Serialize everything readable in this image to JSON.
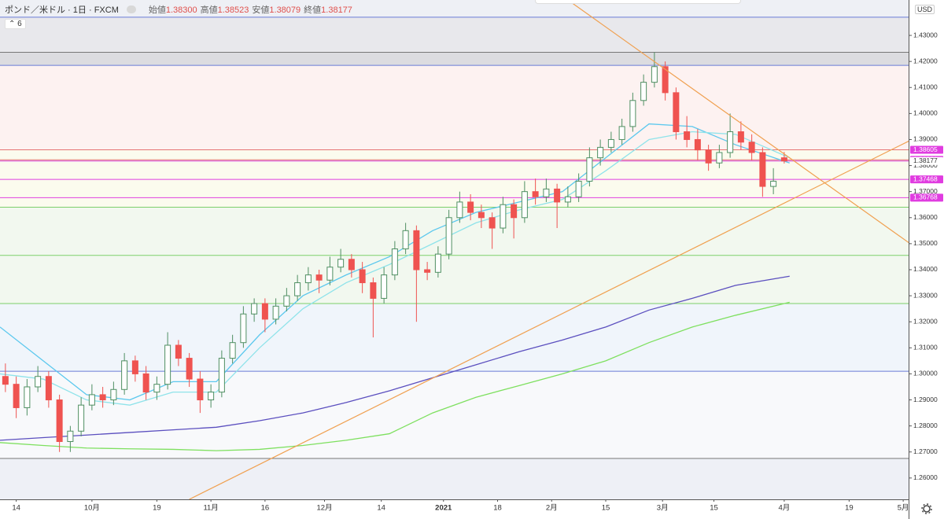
{
  "chart_data": {
    "type": "candlestick",
    "symbol": "ポンド／米ドル",
    "interval": "1日",
    "source": "FXCM",
    "ohlc_header": [
      {
        "name": "始値",
        "value": {
          "value": 1.383,
          "label": "1.38300"
        }
      },
      {
        "name": "高値",
        "value": {
          "value": 1.38523,
          "label": "1.38523"
        }
      },
      {
        "name": "安値",
        "value": {
          "value": 1.38079,
          "label": "1.38079"
        }
      },
      {
        "name": "終値",
        "value": {
          "value": 1.38177,
          "label": "1.38177"
        }
      }
    ],
    "indicator_count": 6,
    "currency": "USD",
    "xlim": [
      0,
      168
    ],
    "ylim": [
      1.2518,
      1.4436
    ],
    "xticks": [
      {
        "value": 3,
        "label": "14"
      },
      {
        "value": 17,
        "label": "10月"
      },
      {
        "value": 29,
        "label": "19"
      },
      {
        "value": 39,
        "label": "11月"
      },
      {
        "value": 49,
        "label": "16"
      },
      {
        "value": 60,
        "label": "12月"
      },
      {
        "value": 70.5,
        "label": "14"
      },
      {
        "value": 82,
        "label": "2021"
      },
      {
        "value": 92,
        "label": "18"
      },
      {
        "value": 102,
        "label": "2月"
      },
      {
        "value": 112,
        "label": "15"
      },
      {
        "value": 122.5,
        "label": "3月"
      },
      {
        "value": 132,
        "label": "15"
      },
      {
        "value": 145,
        "label": "4月"
      },
      {
        "value": 157,
        "label": "19"
      },
      {
        "value": 167,
        "label": "5月"
      }
    ],
    "yticks": [
      {
        "value": 1.26,
        "label": "1.26000"
      },
      {
        "value": 1.27,
        "label": "1.27000"
      },
      {
        "value": 1.28,
        "label": "1.28000"
      },
      {
        "value": 1.29,
        "label": "1.29000"
      },
      {
        "value": 1.3,
        "label": "1.30000"
      },
      {
        "value": 1.31,
        "label": "1.31000"
      },
      {
        "value": 1.32,
        "label": "1.32000"
      },
      {
        "value": 1.33,
        "label": "1.33000"
      },
      {
        "value": 1.34,
        "label": "1.34000"
      },
      {
        "value": 1.35,
        "label": "1.35000"
      },
      {
        "value": 1.36,
        "label": "1.36000"
      },
      {
        "value": 1.37,
        "label": "1.37000"
      },
      {
        "value": 1.38,
        "label": "1.38000"
      },
      {
        "value": 1.39,
        "label": "1.39000"
      },
      {
        "value": 1.4,
        "label": "1.40000"
      },
      {
        "value": 1.41,
        "label": "1.41000"
      },
      {
        "value": 1.42,
        "label": "1.42000"
      },
      {
        "value": 1.43,
        "label": "1.43000"
      }
    ],
    "up_color": "#4f8f62",
    "down_color": "#ef5350",
    "x": [
      1,
      3,
      5,
      7,
      9,
      11,
      13,
      15,
      17,
      19,
      21,
      23,
      25,
      27,
      29,
      31,
      33,
      35,
      37,
      39,
      41,
      43,
      45,
      47,
      49,
      51,
      53,
      55,
      57,
      59,
      61,
      63,
      65,
      67,
      69,
      71,
      73,
      75,
      77,
      79,
      81,
      83,
      85,
      87,
      89,
      91,
      93,
      95,
      97,
      99,
      101,
      103,
      105,
      107,
      109,
      111,
      113,
      115,
      117,
      119,
      121,
      123,
      125,
      127,
      129,
      131,
      133,
      135,
      137,
      139,
      141,
      143,
      145
    ],
    "open": [
      1.299,
      1.296,
      1.287,
      1.295,
      1.299,
      1.29,
      1.274,
      1.278,
      1.288,
      1.292,
      1.29,
      1.294,
      1.305,
      1.3,
      1.293,
      1.296,
      1.311,
      1.306,
      1.298,
      1.29,
      1.293,
      1.306,
      1.312,
      1.323,
      1.327,
      1.321,
      1.326,
      1.33,
      1.335,
      1.338,
      1.336,
      1.341,
      1.344,
      1.34,
      1.335,
      1.329,
      1.338,
      1.348,
      1.355,
      1.34,
      1.339,
      1.346,
      1.36,
      1.366,
      1.362,
      1.36,
      1.356,
      1.365,
      1.36,
      1.37,
      1.368,
      1.371,
      1.366,
      1.368,
      1.374,
      1.383,
      1.387,
      1.39,
      1.395,
      1.405,
      1.412,
      1.418,
      1.408,
      1.393,
      1.39,
      1.386,
      1.381,
      1.385,
      1.393,
      1.389,
      1.385,
      1.372,
      1.383
    ],
    "high": [
      1.304,
      1.299,
      1.298,
      1.303,
      1.301,
      1.292,
      1.28,
      1.291,
      1.296,
      1.295,
      1.297,
      1.308,
      1.307,
      1.303,
      1.299,
      1.316,
      1.313,
      1.308,
      1.301,
      1.296,
      1.309,
      1.315,
      1.326,
      1.329,
      1.329,
      1.329,
      1.333,
      1.338,
      1.341,
      1.34,
      1.345,
      1.348,
      1.346,
      1.343,
      1.337,
      1.341,
      1.351,
      1.358,
      1.357,
      1.343,
      1.349,
      1.363,
      1.37,
      1.369,
      1.365,
      1.362,
      1.368,
      1.367,
      1.374,
      1.375,
      1.375,
      1.373,
      1.372,
      1.377,
      1.387,
      1.39,
      1.393,
      1.398,
      1.408,
      1.415,
      1.4235,
      1.42,
      1.41,
      1.399,
      1.394,
      1.388,
      1.388,
      1.4,
      1.397,
      1.392,
      1.387,
      1.379,
      1.38523
    ],
    "low": [
      1.293,
      1.283,
      1.284,
      1.293,
      1.287,
      1.27,
      1.27,
      1.276,
      1.286,
      1.287,
      1.288,
      1.292,
      1.297,
      1.29,
      1.29,
      1.294,
      1.303,
      1.295,
      1.285,
      1.287,
      1.291,
      1.304,
      1.31,
      1.32,
      1.316,
      1.319,
      1.324,
      1.328,
      1.332,
      1.331,
      1.334,
      1.339,
      1.337,
      1.331,
      1.314,
      1.327,
      1.336,
      1.346,
      1.32,
      1.336,
      1.337,
      1.344,
      1.358,
      1.359,
      1.356,
      1.348,
      1.354,
      1.352,
      1.358,
      1.365,
      1.366,
      1.356,
      1.364,
      1.366,
      1.372,
      1.38,
      1.385,
      1.388,
      1.393,
      1.403,
      1.41,
      1.405,
      1.39,
      1.387,
      1.382,
      1.378,
      1.379,
      1.383,
      1.386,
      1.382,
      1.368,
      1.369,
      1.38079
    ],
    "close": [
      1.296,
      1.287,
      1.295,
      1.299,
      1.29,
      1.274,
      1.278,
      1.288,
      1.292,
      1.29,
      1.294,
      1.305,
      1.3,
      1.293,
      1.296,
      1.311,
      1.306,
      1.298,
      1.29,
      1.293,
      1.306,
      1.312,
      1.323,
      1.327,
      1.321,
      1.326,
      1.33,
      1.335,
      1.338,
      1.336,
      1.341,
      1.344,
      1.34,
      1.335,
      1.329,
      1.338,
      1.348,
      1.355,
      1.34,
      1.339,
      1.346,
      1.36,
      1.366,
      1.362,
      1.36,
      1.356,
      1.365,
      1.36,
      1.37,
      1.368,
      1.371,
      1.366,
      1.368,
      1.374,
      1.383,
      1.387,
      1.39,
      1.395,
      1.405,
      1.412,
      1.418,
      1.408,
      1.393,
      1.39,
      1.386,
      1.381,
      1.385,
      1.393,
      1.389,
      1.385,
      1.372,
      1.374,
      1.38177
    ],
    "ma_x": [
      0,
      8,
      16,
      24,
      32,
      40,
      48,
      56,
      64,
      72,
      80,
      88,
      96,
      104,
      112,
      120,
      128,
      136,
      146
    ],
    "moving_averages": [
      {
        "color": "#5cc8ee",
        "values": [
          1.318,
          1.305,
          1.292,
          1.29,
          1.297,
          1.297,
          1.315,
          1.33,
          1.338,
          1.345,
          1.355,
          1.362,
          1.366,
          1.37,
          1.383,
          1.396,
          1.395,
          1.388,
          1.381
        ]
      },
      {
        "color": "#8fe3ea",
        "values": [
          1.3,
          1.298,
          1.29,
          1.288,
          1.293,
          1.293,
          1.31,
          1.325,
          1.335,
          1.342,
          1.35,
          1.358,
          1.363,
          1.367,
          1.378,
          1.39,
          1.393,
          1.392,
          1.383
        ]
      },
      {
        "color": "#5b4fbf",
        "values": [
          1.2745,
          1.2755,
          1.2765,
          1.2775,
          1.2785,
          1.2795,
          1.282,
          1.285,
          1.289,
          1.2935,
          1.2985,
          1.3035,
          1.3085,
          1.313,
          1.318,
          1.3245,
          1.329,
          1.334,
          1.3375
        ]
      },
      {
        "color": "#7ee05f",
        "values": [
          1.2736,
          1.2725,
          1.2715,
          1.2712,
          1.271,
          1.2705,
          1.271,
          1.2725,
          1.2745,
          1.277,
          1.285,
          1.291,
          1.2955,
          1.3,
          1.305,
          1.312,
          1.318,
          1.3225,
          1.3275
        ]
      }
    ],
    "zones": [
      {
        "from": 1.437,
        "to": 1.4436,
        "color": "#eef0f5"
      },
      {
        "from": 1.4235,
        "to": 1.437,
        "color": "#e8e8ec"
      },
      {
        "from": 1.4185,
        "to": 1.4235,
        "color": "#dcdce0"
      },
      {
        "from": 1.386,
        "to": 1.4185,
        "color": "#fdf2f1"
      },
      {
        "from": 1.364,
        "to": 1.386,
        "color": "#fbfbee"
      },
      {
        "from": 1.327,
        "to": 1.364,
        "color": "#f2f8ef"
      },
      {
        "from": 1.301,
        "to": 1.327,
        "color": "#f0f5fb"
      },
      {
        "from": 1.2675,
        "to": 1.301,
        "color": "#f8f9fb"
      },
      {
        "from": 1.2518,
        "to": 1.2675,
        "color": "#eef0f6"
      }
    ],
    "levels": [
      {
        "value": 1.437,
        "color": "#6a7bd6"
      },
      {
        "value": 1.4235,
        "color": "#777777"
      },
      {
        "value": 1.4185,
        "color": "#6a7bd6"
      },
      {
        "value": 1.38605,
        "color": "#e57373"
      },
      {
        "value": 1.38221,
        "color": "#e57373"
      },
      {
        "value": 1.38177,
        "color": "#d63fd6"
      },
      {
        "value": 1.37468,
        "color": "#e040e0"
      },
      {
        "value": 1.36768,
        "color": "#e040e0"
      },
      {
        "value": 1.364,
        "color": "#7ccf6a"
      },
      {
        "value": 1.3455,
        "color": "#7ccf6a"
      },
      {
        "value": 1.327,
        "color": "#7ccf6a"
      },
      {
        "value": 1.301,
        "color": "#6a7bd6"
      },
      {
        "value": 1.2675,
        "color": "#777777"
      }
    ],
    "price_tags": [
      {
        "value": 1.38605,
        "color": "#e03ce0",
        "text_color": "#ffffff"
      },
      {
        "value": 1.38221,
        "color": "#e03ce0",
        "text_color": "#ffffff"
      },
      {
        "value": 1.38177,
        "color": "#ffffff",
        "text_color": "#333333"
      },
      {
        "value": 1.37468,
        "color": "#e03ce0",
        "text_color": "#ffffff"
      },
      {
        "value": 1.36768,
        "color": "#e03ce0",
        "text_color": "#ffffff"
      }
    ],
    "trendlines": [
      {
        "color": "#f0a050",
        "x": [
          105,
          168.7
        ],
        "y": [
          1.4436,
          1.3494
        ]
      },
      {
        "color": "#f0a050",
        "x": [
          35,
          168.7
        ],
        "y": [
          1.2518,
          1.3901
        ]
      }
    ]
  }
}
